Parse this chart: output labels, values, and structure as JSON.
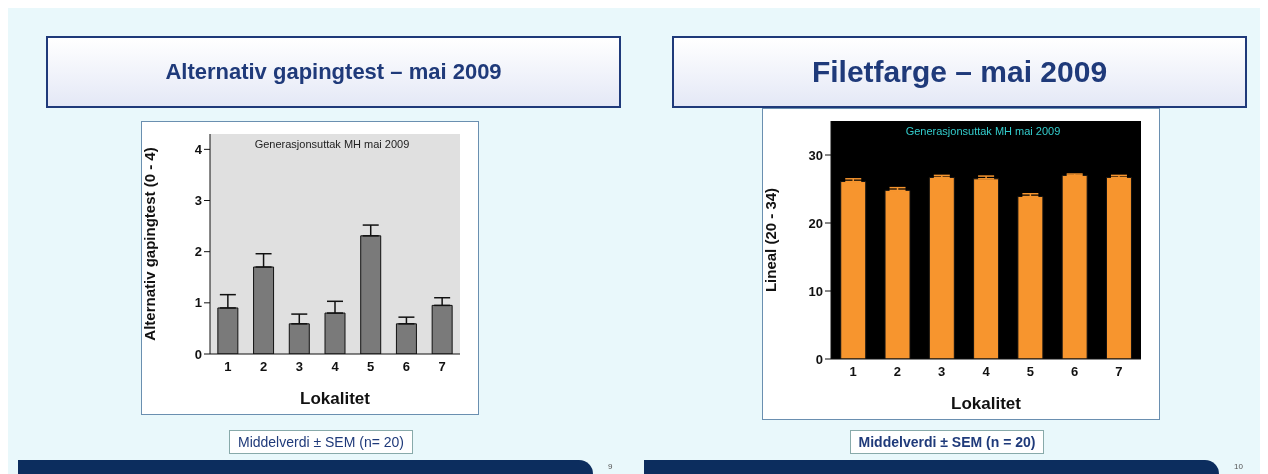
{
  "chart_data": [
    {
      "type": "bar",
      "title": "Alternativ gapingtest – mai 2009",
      "subtitle": "Generasjonsuttak MH mai 2009",
      "xlabel": "Lokalitet",
      "ylabel": "Alternativ gapingtest (0 - 4)",
      "categories": [
        "1",
        "2",
        "3",
        "4",
        "5",
        "6",
        "7"
      ],
      "values": [
        0.9,
        1.7,
        0.59,
        0.8,
        2.31,
        0.59,
        0.95
      ],
      "errors": [
        [
          0.9,
          1.16
        ],
        [
          1.7,
          1.96
        ],
        [
          0.59,
          0.78
        ],
        [
          0.8,
          1.03
        ],
        [
          2.31,
          2.52
        ],
        [
          0.59,
          0.72
        ],
        [
          0.95,
          1.1
        ]
      ],
      "color": "#7a7a7a",
      "ylim": [
        0,
        4.3
      ],
      "yticks": [
        0,
        1,
        2,
        3,
        4
      ],
      "grid": false,
      "legend": false,
      "annotations": [
        "Middelverdi ± SEM (n= 20)",
        "9"
      ]
    },
    {
      "type": "bar",
      "title": "Filetfarge – mai 2009",
      "subtitle": "Generasjonsuttak MH mai 2009",
      "xlabel": "Lokalitet",
      "ylabel": "Lineal (20 - 34)",
      "categories": [
        "1",
        "2",
        "3",
        "4",
        "5",
        "6",
        "7"
      ],
      "values": [
        26.1,
        24.8,
        26.7,
        26.5,
        23.9,
        27.0,
        26.7
      ],
      "errors": [
        [
          26.1,
          26.5
        ],
        [
          24.8,
          25.2
        ],
        [
          26.7,
          27.0
        ],
        [
          26.5,
          26.9
        ],
        [
          23.9,
          24.3
        ],
        [
          27.0,
          27.2
        ],
        [
          26.7,
          27.0
        ]
      ],
      "color": "#f7952e",
      "ylim": [
        0,
        35
      ],
      "yticks": [
        0,
        10,
        20,
        30
      ],
      "grid": false,
      "legend": false,
      "annotations": [
        "Middelverdi ± SEM (n = 20)",
        "10"
      ]
    }
  ]
}
